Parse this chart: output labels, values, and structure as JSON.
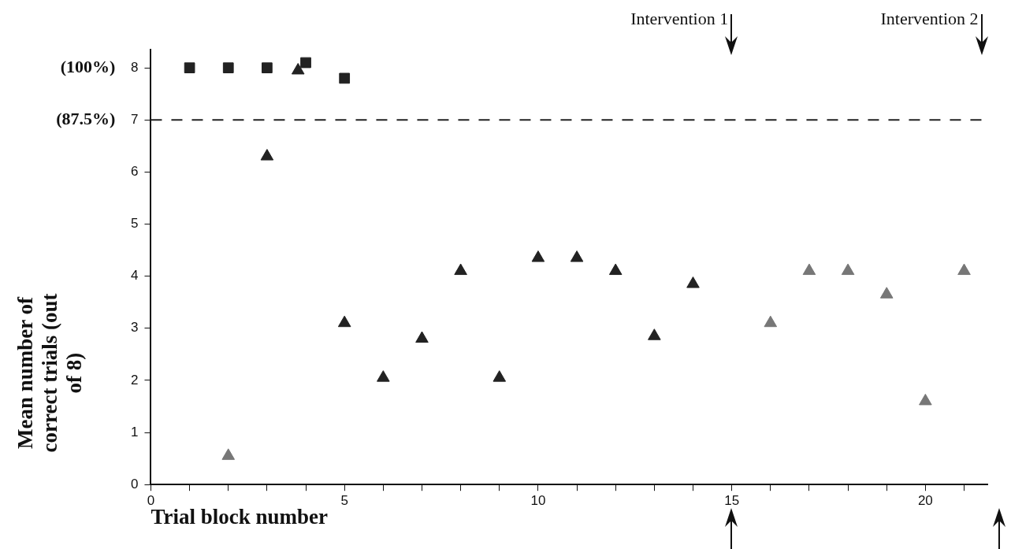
{
  "chart_data": {
    "type": "scatter",
    "ylabel": "Mean number of correct trials (out of 8)",
    "xlabel": "Trial block number",
    "xlim": [
      0,
      21.6
    ],
    "ylim": [
      0,
      8.35
    ],
    "xticks": [
      0,
      {
        "value": 1,
        "label": null
      },
      {
        "value": 2,
        "label": null
      },
      {
        "value": 3,
        "label": null
      },
      {
        "value": 4,
        "label": null
      },
      5,
      {
        "value": 6,
        "label": null
      },
      {
        "value": 7,
        "label": null
      },
      {
        "value": 8,
        "label": null
      },
      {
        "value": 9,
        "label": null
      },
      10,
      {
        "value": 11,
        "label": null
      },
      {
        "value": 12,
        "label": null
      },
      {
        "value": 13,
        "label": null
      },
      {
        "value": 14,
        "label": null
      },
      15,
      {
        "value": 16,
        "label": null
      },
      {
        "value": 17,
        "label": null
      },
      {
        "value": 18,
        "label": null
      },
      {
        "value": 19,
        "label": null
      },
      20,
      {
        "value": 21,
        "label": null
      }
    ],
    "yticks": [
      0,
      1,
      2,
      3,
      4,
      5,
      6,
      7,
      8
    ],
    "series": [
      {
        "color": "#222222",
        "marker": "square",
        "x": [
          1,
          2,
          3,
          4,
          5
        ],
        "values": [
          8,
          8,
          8,
          8.1,
          7.8
        ]
      },
      {
        "color": "#222222",
        "marker": "triangle",
        "x": [
          3,
          3.8,
          5,
          6,
          7,
          8,
          9,
          10,
          11,
          12,
          13,
          14
        ],
        "values": [
          6.3,
          7.95,
          3.1,
          2.05,
          2.8,
          4.1,
          2.05,
          4.35,
          4.35,
          4.1,
          2.85,
          3.85
        ]
      },
      {
        "color": "#777777",
        "marker": "triangle",
        "x": [
          2,
          16,
          17,
          18,
          19,
          20,
          21
        ],
        "values": [
          0.55,
          3.1,
          4.1,
          4.1,
          3.65,
          1.6,
          4.1
        ]
      }
    ],
    "ref_lines": [
      {
        "axis": "y",
        "value": 7,
        "color": "#222222",
        "line_style": "dashed"
      }
    ],
    "annotations": [
      "(100%)",
      "(87.5%)",
      "Intervention 1",
      "Intervention 2"
    ],
    "grid": false,
    "legend": false
  }
}
